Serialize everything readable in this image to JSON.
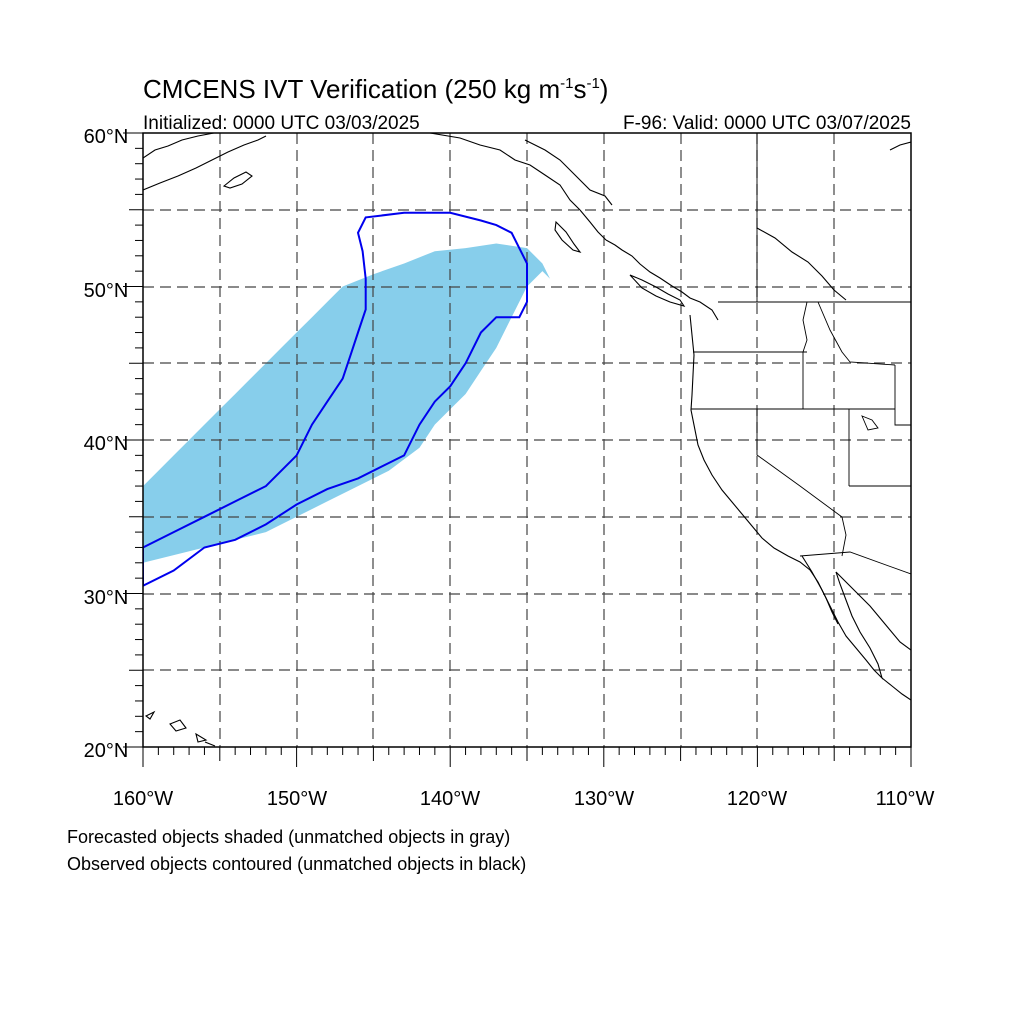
{
  "title": {
    "main_prefix": "CMCENS IVT Verification (250 kg m",
    "exp1": "-1",
    "mid": "s",
    "exp2": "-1",
    "suffix": ")"
  },
  "subtitle": {
    "left": "Initialized: 0000 UTC 03/03/2025",
    "right": "F-96: Valid: 0000 UTC 03/07/2025"
  },
  "axes": {
    "lon_range": [
      -160,
      -110
    ],
    "lat_range": [
      20,
      60
    ],
    "lon_ticks": [
      "160°W",
      "150°W",
      "140°W",
      "130°W",
      "120°W",
      "110°W"
    ],
    "lat_ticks": [
      "60°N",
      "50°N",
      "40°N",
      "30°N",
      "20°N"
    ],
    "grid": "dashed, every 5 degrees"
  },
  "legend": {
    "line1": "Forecasted objects shaded (unmatched objects in gray)",
    "line2": "Observed objects contoured (unmatched objects in black)"
  },
  "colors": {
    "forecast_fill": "#87ceeb",
    "observed_contour": "#0000ee",
    "coastline": "#000000"
  },
  "map_data": {
    "projection": "cylindrical equidistant",
    "forecast_object": {
      "style": "shaded",
      "lonlat": [
        [
          -160,
          32
        ],
        [
          -158,
          32.5
        ],
        [
          -156,
          33
        ],
        [
          -154,
          33.5
        ],
        [
          -152,
          34
        ],
        [
          -150,
          35
        ],
        [
          -148,
          36
        ],
        [
          -146,
          37
        ],
        [
          -144,
          38
        ],
        [
          -142,
          39.5
        ],
        [
          -141,
          41
        ],
        [
          -140,
          42
        ],
        [
          -139,
          43
        ],
        [
          -138,
          44.5
        ],
        [
          -137,
          46
        ],
        [
          -136,
          48
        ],
        [
          -135,
          50
        ],
        [
          -134,
          51
        ],
        [
          -133.5,
          50.5
        ],
        [
          -134,
          51.5
        ],
        [
          -135,
          52.5
        ],
        [
          -137,
          52.8
        ],
        [
          -139,
          52.5
        ],
        [
          -141,
          52.3
        ],
        [
          -143,
          51.5
        ],
        [
          -145,
          50.8
        ],
        [
          -147,
          50
        ],
        [
          -148,
          49
        ],
        [
          -149,
          48
        ],
        [
          -150,
          47
        ],
        [
          -151,
          46
        ],
        [
          -152,
          45
        ],
        [
          -153,
          44
        ],
        [
          -154,
          43
        ],
        [
          -155,
          42
        ],
        [
          -156,
          41
        ],
        [
          -157,
          40
        ],
        [
          -158,
          39
        ],
        [
          -159,
          38
        ],
        [
          -160,
          37
        ]
      ]
    },
    "observed_object": {
      "style": "contour",
      "lonlat": [
        [
          -160,
          33
        ],
        [
          -158,
          34
        ],
        [
          -156,
          35
        ],
        [
          -154,
          36
        ],
        [
          -152,
          37
        ],
        [
          -150,
          39
        ],
        [
          -149,
          41
        ],
        [
          -148,
          42.5
        ],
        [
          -147,
          44
        ],
        [
          -146.5,
          45.5
        ],
        [
          -146,
          47
        ],
        [
          -145.5,
          48.5
        ],
        [
          -145.5,
          50.5
        ],
        [
          -145.7,
          52.3
        ],
        [
          -146,
          53.5
        ],
        [
          -145.5,
          54.5
        ],
        [
          -143,
          54.8
        ],
        [
          -140,
          54.8
        ],
        [
          -138,
          54.3
        ],
        [
          -137,
          54
        ],
        [
          -136,
          53.5
        ],
        [
          -135,
          51.5
        ],
        [
          -135,
          49
        ],
        [
          -135.5,
          48
        ],
        [
          -137,
          48
        ],
        [
          -138,
          47
        ],
        [
          -139,
          45
        ],
        [
          -140,
          43.5
        ],
        [
          -141,
          42.5
        ],
        [
          -142,
          41
        ],
        [
          -143,
          39
        ],
        [
          -144,
          38.5
        ],
        [
          -146,
          37.5
        ],
        [
          -148,
          36.8
        ],
        [
          -150,
          35.8
        ],
        [
          -152,
          34.5
        ],
        [
          -154,
          33.5
        ],
        [
          -156,
          33
        ],
        [
          -158,
          31.5
        ],
        [
          -160,
          30.5
        ]
      ]
    }
  }
}
